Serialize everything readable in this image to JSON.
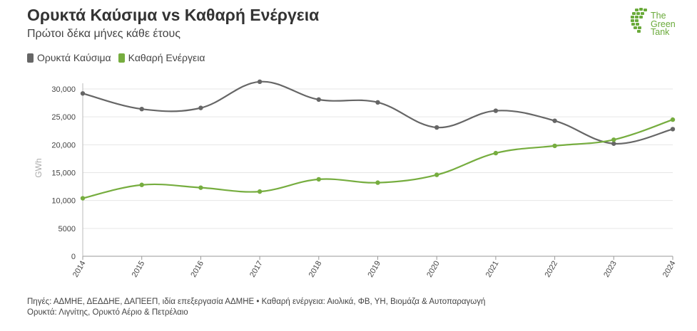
{
  "chart_data": {
    "type": "line",
    "title": "Ορυκτά Καύσιμα vs Καθαρή Ενέργεια",
    "subtitle": "Πρώτοι δέκα μήνες κάθε έτους",
    "xlabel": "",
    "ylabel": "GWh",
    "x": [
      "2014",
      "2015",
      "2016",
      "2017",
      "2018",
      "2019",
      "2020",
      "2021",
      "2022",
      "2023",
      "2024"
    ],
    "ylim": [
      0,
      30000
    ],
    "yticks": [
      0,
      5000,
      10000,
      15000,
      20000,
      25000,
      30000
    ],
    "ytick_labels": [
      "0",
      "5000",
      "10,000",
      "15,000",
      "20,000",
      "25,000",
      "30,000"
    ],
    "grid": true,
    "legend": "top-left",
    "series": [
      {
        "name": "Ορυκτά Καύσιμα",
        "color": "#666666",
        "values": [
          29200,
          26400,
          26600,
          31300,
          28100,
          27600,
          23100,
          26100,
          24300,
          20200,
          22800
        ]
      },
      {
        "name": "Καθαρή Ενέργεια",
        "color": "#76ad3f",
        "values": [
          10400,
          12800,
          12300,
          11600,
          13800,
          13200,
          14600,
          18500,
          19800,
          20900,
          24500
        ]
      }
    ]
  },
  "logo": {
    "line1": "The",
    "line2": "Green",
    "line3": "Tank",
    "color": "#6aaa3a"
  },
  "footer": {
    "line1": "Πηγές: ΑΔΜΗΕ, ΔΕΔΔΗΕ, ΔΑΠΕΕΠ, ιδία επεξεργασία ΑΔΜΗΕ • Καθαρή ενέργεια: Αιολικά, ΦΒ, ΥΗ, Βιομάζα & Αυτοπαραγωγή",
    "line2": "Ορυκτά: Λιγνίτης, Ορυκτό Αέριο & Πετρέλαιο"
  }
}
